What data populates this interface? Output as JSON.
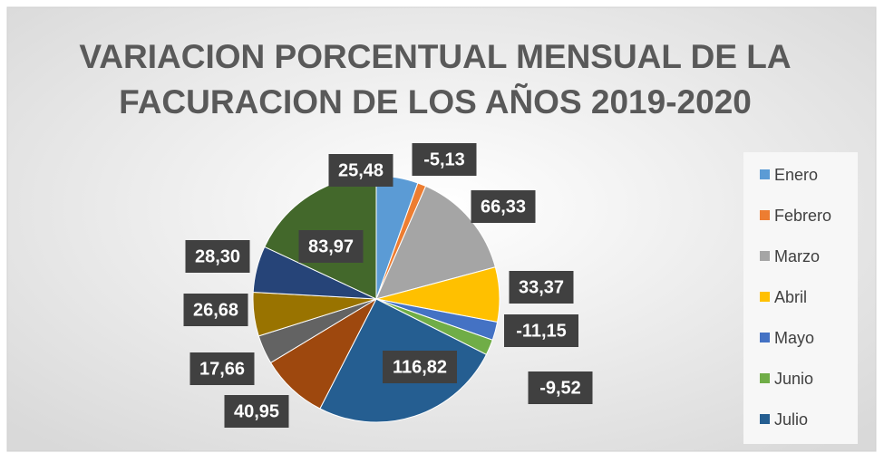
{
  "chart_data": {
    "type": "pie",
    "title": "VARIACION PORCENTUAL MENSUAL DE LA FACURACION DE LOS AÑOS 2019-2020",
    "categories": [
      "Enero",
      "Febrero",
      "Marzo",
      "Abril",
      "Mayo",
      "Junio",
      "Julio",
      null,
      null,
      null,
      null,
      null
    ],
    "values": [
      25.48,
      -5.13,
      66.33,
      33.37,
      -11.15,
      -9.52,
      116.82,
      40.95,
      17.66,
      26.68,
      28.3,
      83.97
    ],
    "value_labels": [
      "25,48",
      "-5,13",
      "66,33",
      "33,37",
      "-11,15",
      "-9,52",
      "116,82",
      "40,95",
      "17,66",
      "26,68",
      "28,30",
      "83,97"
    ],
    "colors": [
      "#5b9bd5",
      "#ed7d31",
      "#a5a5a5",
      "#ffc000",
      "#4472c4",
      "#70ad47",
      "#255e91",
      "#9e480e",
      "#636363",
      "#997300",
      "#264478",
      "#43682b"
    ],
    "legend": "right"
  }
}
